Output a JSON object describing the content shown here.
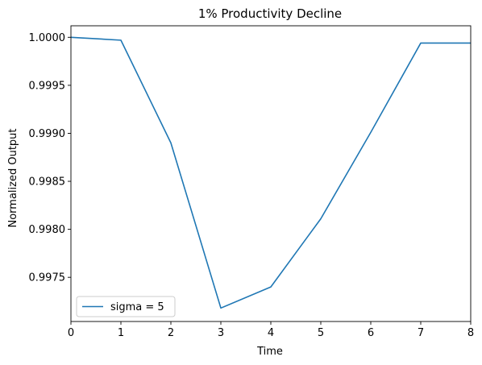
{
  "chart_data": {
    "type": "line",
    "title": "1% Productivity Decline",
    "xlabel": "Time",
    "ylabel": "Normalized Output",
    "xlim": [
      0,
      8
    ],
    "ylim": [
      0.99704,
      1.00012
    ],
    "x_ticks": [
      0,
      1,
      2,
      3,
      4,
      5,
      6,
      7,
      8
    ],
    "y_ticks": [
      0.9975,
      0.998,
      0.9985,
      0.999,
      0.9995,
      1.0
    ],
    "y_tick_labels": [
      "0.9975",
      "0.9980",
      "0.9985",
      "0.9990",
      "0.9995",
      "1.0000"
    ],
    "grid": false,
    "legend_position": "lower-left",
    "series": [
      {
        "name": "sigma = 5",
        "color": "#1f77b4",
        "x": [
          0,
          1,
          2,
          3,
          4,
          5,
          6,
          7,
          8
        ],
        "y": [
          1.0,
          0.99997,
          0.9989,
          0.99718,
          0.9974,
          0.99811,
          0.99901,
          0.99994,
          0.99994
        ]
      }
    ]
  }
}
